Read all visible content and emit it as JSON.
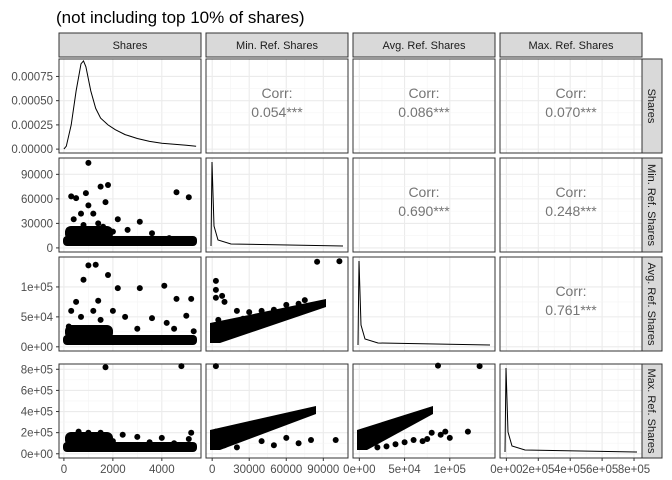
{
  "title": "(not including top 10% of shares)",
  "chart_data": {
    "type": "scatter",
    "title": "(not including top 10% of shares)",
    "variables": [
      "Shares",
      "Min. Ref. Shares",
      "Avg. Ref. Shares",
      "Max. Ref. Shares"
    ],
    "density_ticks": {
      "values": [
        0,
        0.00025,
        0.0005,
        0.00075
      ],
      "labels": [
        "0.00000",
        "0.00025",
        "0.00050",
        "0.00075"
      ],
      "range": [
        0,
        0.00093
      ]
    },
    "axes": [
      {
        "range": [
          -200,
          5600
        ],
        "ticks": [
          0,
          2000,
          4000
        ],
        "labels": [
          "0",
          "2000",
          "4000"
        ]
      },
      {
        "range": [
          -5000,
          110000
        ],
        "ticks": [
          0,
          30000,
          60000,
          90000
        ],
        "labels": [
          "0",
          "30000",
          "60000",
          "90000"
        ]
      },
      {
        "range": [
          -7000,
          150000
        ],
        "ticks": [
          0,
          50000,
          100000
        ],
        "labels": [
          "0e+00",
          "5e+04",
          "1e+05"
        ]
      },
      {
        "range": [
          -40000,
          850000
        ],
        "ticks": [
          0,
          200000,
          400000,
          600000,
          800000
        ],
        "labels": [
          "0e+00",
          "2e+05",
          "4e+05",
          "6e+05",
          "8e+05"
        ]
      }
    ],
    "correlations": [
      {
        "row": 0,
        "col": 1,
        "label": "Corr:",
        "value": "0.054***"
      },
      {
        "row": 0,
        "col": 2,
        "label": "Corr:",
        "value": "0.086***"
      },
      {
        "row": 0,
        "col": 3,
        "label": "Corr:",
        "value": "0.070***"
      },
      {
        "row": 1,
        "col": 2,
        "label": "Corr:",
        "value": "0.690***"
      },
      {
        "row": 1,
        "col": 3,
        "label": "Corr:",
        "value": "0.248***"
      },
      {
        "row": 2,
        "col": 3,
        "label": "Corr:",
        "value": "0.761***"
      }
    ],
    "density_shares": [
      [
        0,
        0
      ],
      [
        100,
        3e-05
      ],
      [
        300,
        0.00025
      ],
      [
        500,
        0.0006
      ],
      [
        700,
        0.00088
      ],
      [
        800,
        0.00091
      ],
      [
        900,
        0.00085
      ],
      [
        1100,
        0.0006
      ],
      [
        1300,
        0.00042
      ],
      [
        1500,
        0.00032
      ],
      [
        1800,
        0.00025
      ],
      [
        2100,
        0.0002
      ],
      [
        2500,
        0.00015
      ],
      [
        3000,
        0.00011
      ],
      [
        3500,
        8e-05
      ],
      [
        4000,
        6e-05
      ],
      [
        4500,
        5e-05
      ],
      [
        5000,
        4e-05
      ],
      [
        5400,
        3e-05
      ]
    ],
    "points": {
      "r1c0": [
        [
          1000,
          104000
        ],
        [
          300,
          63000
        ],
        [
          500,
          61000
        ],
        [
          900,
          67000
        ],
        [
          1200,
          42000
        ],
        [
          1500,
          75000
        ],
        [
          1800,
          77000
        ],
        [
          1700,
          56000
        ],
        [
          700,
          42000
        ],
        [
          2200,
          35000
        ],
        [
          3100,
          32000
        ],
        [
          4600,
          68000
        ],
        [
          5100,
          62000
        ],
        [
          4300,
          12000
        ],
        [
          1000,
          52000
        ],
        [
          1400,
          30000
        ],
        [
          2600,
          22000
        ],
        [
          3600,
          18000
        ],
        [
          400,
          35000
        ],
        [
          800,
          28000
        ],
        [
          1600,
          26000
        ],
        [
          2000,
          20000
        ],
        [
          200,
          22000
        ],
        [
          5300,
          10000
        ]
      ],
      "r2c0": [
        [
          1000,
          136000
        ],
        [
          1300,
          137000
        ],
        [
          1400,
          77000
        ],
        [
          500,
          75000
        ],
        [
          800,
          112000
        ],
        [
          2200,
          98000
        ],
        [
          3100,
          98000
        ],
        [
          4100,
          102000
        ],
        [
          4600,
          80000
        ],
        [
          5200,
          80000
        ],
        [
          1800,
          120000
        ],
        [
          300,
          60000
        ],
        [
          2500,
          50000
        ],
        [
          3600,
          48000
        ],
        [
          4200,
          40000
        ],
        [
          5000,
          52000
        ],
        [
          700,
          50000
        ],
        [
          1500,
          45000
        ],
        [
          1200,
          60000
        ],
        [
          2000,
          60000
        ],
        [
          3000,
          30000
        ],
        [
          4500,
          30000
        ],
        [
          5300,
          26000
        ],
        [
          200,
          34000
        ]
      ],
      "r2c1": [
        [
          85000,
          142000
        ],
        [
          103000,
          143000
        ],
        [
          3000,
          110000
        ],
        [
          3000,
          95000
        ],
        [
          3000,
          82000
        ],
        [
          10000,
          75000
        ],
        [
          20000,
          60000
        ],
        [
          30000,
          58000
        ],
        [
          50000,
          62000
        ],
        [
          70000,
          72000
        ],
        [
          75000,
          78000
        ],
        [
          40000,
          60000
        ],
        [
          5000,
          45000
        ],
        [
          8000,
          85000
        ],
        [
          15000,
          40000
        ],
        [
          25000,
          47000
        ],
        [
          60000,
          70000
        ]
      ],
      "r3c0": [
        [
          1700,
          820000
        ],
        [
          4800,
          830000
        ],
        [
          600,
          210000
        ],
        [
          1000,
          200000
        ],
        [
          1500,
          200000
        ],
        [
          2400,
          180000
        ],
        [
          3000,
          160000
        ],
        [
          4000,
          150000
        ],
        [
          5200,
          200000
        ],
        [
          5100,
          140000
        ],
        [
          300,
          140000
        ],
        [
          1200,
          160000
        ],
        [
          2000,
          120000
        ],
        [
          3500,
          110000
        ],
        [
          4500,
          100000
        ]
      ],
      "r3c1": [
        [
          3000,
          830000
        ],
        [
          3000,
          210000
        ],
        [
          3000,
          170000
        ],
        [
          40000,
          120000
        ],
        [
          60000,
          150000
        ],
        [
          80000,
          130000
        ],
        [
          100000,
          130000
        ],
        [
          20000,
          60000
        ],
        [
          50000,
          80000
        ],
        [
          70000,
          100000
        ],
        [
          10000,
          80000
        ]
      ],
      "r3c2": [
        [
          87000,
          835000
        ],
        [
          133000,
          830000
        ],
        [
          80000,
          200000
        ],
        [
          90000,
          180000
        ],
        [
          95000,
          210000
        ],
        [
          120000,
          210000
        ],
        [
          75000,
          140000
        ],
        [
          50000,
          110000
        ],
        [
          60000,
          130000
        ],
        [
          30000,
          70000
        ],
        [
          40000,
          90000
        ],
        [
          20000,
          60000
        ],
        [
          100000,
          150000
        ],
        [
          70000,
          120000
        ]
      ]
    }
  }
}
